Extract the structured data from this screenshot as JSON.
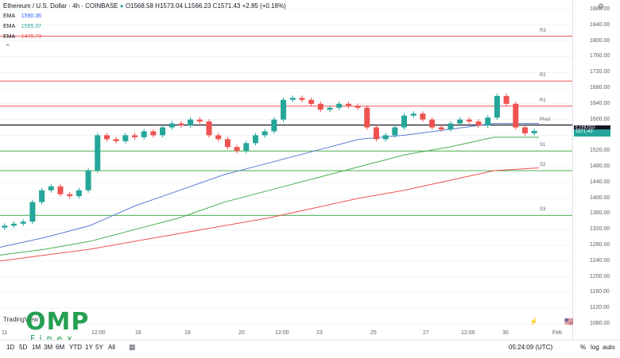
{
  "header": {
    "title": "Ethereum / U.S. Dollar · 4h · COINBASE",
    "ohlc": "O1568.58 H1573.04 L1566.23 C1571.43 +2.85 (+0.18%)"
  },
  "indicators": [
    {
      "label": "EMA",
      "value": "1590.36",
      "color": "#2962ff"
    },
    {
      "label": "EMA",
      "value": "1555.37",
      "color": "#26a69a"
    },
    {
      "label": "EMA",
      "value": "1476.73",
      "color": "#ef5350"
    }
  ],
  "levels": [
    {
      "label": "R3",
      "price": 1812
    },
    {
      "label": "R2",
      "price": 1698
    },
    {
      "label": "R1",
      "price": 1634
    },
    {
      "label": "Pivot",
      "price": 1586
    },
    {
      "label": "S1",
      "price": 1520
    },
    {
      "label": "S2",
      "price": 1470
    },
    {
      "label": "S3",
      "price": 1356
    }
  ],
  "y_axis_ticks": [
    "1880.00",
    "1840.00",
    "1800.00",
    "1760.00",
    "1720.00",
    "1680.00",
    "1640.00",
    "1600.00",
    "1560.00",
    "1520.00",
    "1480.00",
    "1440.00",
    "1400.00",
    "1360.00",
    "1320.00",
    "1280.00",
    "1240.00",
    "1200.00",
    "1160.00",
    "1120.00",
    "1080.00"
  ],
  "x_axis_ticks": [
    "11",
    "12:00",
    "16",
    "18",
    "20",
    "12:00",
    "23",
    "25",
    "27",
    "12:00",
    "30",
    "Feb"
  ],
  "price_tags": {
    "last": "ETHUSD",
    "value": "1571.43"
  },
  "timeframes": [
    "1D",
    "5D",
    "1M",
    "3M",
    "6M",
    "YTD",
    "1Y",
    "5Y",
    "All"
  ],
  "footer": {
    "clock": "05:24:09 (UTC)",
    "pct": "%",
    "log": "log",
    "auto": "auto"
  },
  "brand": {
    "logo": "OMP",
    "sub": "Finex",
    "tv": "TradingView"
  },
  "chart_data": {
    "type": "line",
    "title": "Ethereum / U.S. Dollar · 4h · COINBASE",
    "ylim": [
      1080,
      1880
    ],
    "candles_close": [
      1330,
      1335,
      1340,
      1390,
      1420,
      1430,
      1410,
      1405,
      1420,
      1470,
      1560,
      1550,
      1545,
      1560,
      1555,
      1570,
      1560,
      1580,
      1590,
      1585,
      1600,
      1595,
      1560,
      1550,
      1530,
      1520,
      1540,
      1560,
      1570,
      1600,
      1650,
      1655,
      1650,
      1640,
      1625,
      1630,
      1640,
      1635,
      1630,
      1580,
      1550,
      1560,
      1580,
      1610,
      1615,
      1600,
      1580,
      1575,
      1590,
      1600,
      1595,
      1585,
      1605,
      1660,
      1640,
      1580,
      1565,
      1571
    ],
    "series": [
      {
        "name": "EMA",
        "values": [
          1275,
          1300,
          1330,
          1380,
          1420,
          1460,
          1490,
          1520,
          1550,
          1560,
          1575,
          1590,
          1590
        ]
      },
      {
        "name": "EMA",
        "values": [
          1255,
          1270,
          1290,
          1320,
          1350,
          1390,
          1420,
          1450,
          1480,
          1510,
          1530,
          1555,
          1555
        ]
      },
      {
        "name": "EMA",
        "values": [
          1240,
          1255,
          1270,
          1290,
          1310,
          1330,
          1350,
          1375,
          1400,
          1420,
          1445,
          1470,
          1477
        ]
      }
    ]
  }
}
